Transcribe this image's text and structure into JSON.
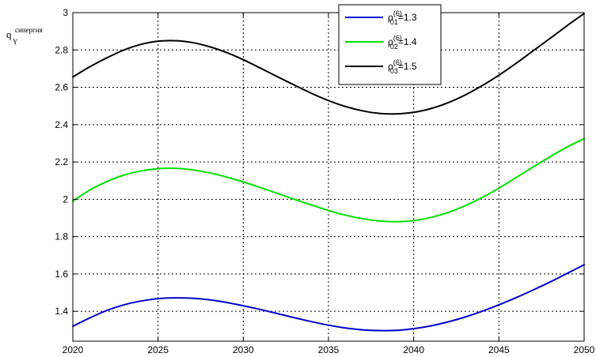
{
  "chart_data": {
    "type": "line",
    "ylabel": {
      "base": "q",
      "superscript": "синергия",
      "subscript": "Y"
    },
    "xlim": [
      2020,
      2050
    ],
    "ylim": [
      1.24,
      3.0
    ],
    "grid": true,
    "xticks": [
      2020,
      2025,
      2030,
      2035,
      2040,
      2045,
      2050
    ],
    "xtick_labels": [
      "2020",
      "2025",
      "2030",
      "2035",
      "2040",
      "2045",
      "2050"
    ],
    "yticks": [
      1.4,
      1.6,
      1.8,
      2.0,
      2.2,
      2.4,
      2.6,
      2.8,
      3.0
    ],
    "ytick_labels": [
      "1.4",
      "1.6",
      "1.8",
      "2",
      "2.2",
      "2.4",
      "2.6",
      "2.8",
      "3"
    ],
    "legend_position": "top-center",
    "x": [
      2020,
      2021,
      2022,
      2023,
      2024,
      2025,
      2026,
      2027,
      2028,
      2029,
      2030,
      2031,
      2032,
      2033,
      2034,
      2035,
      2036,
      2037,
      2038,
      2039,
      2040,
      2041,
      2042,
      2043,
      2044,
      2045,
      2046,
      2047,
      2048,
      2049,
      2050
    ],
    "series": [
      {
        "legend": {
          "base": "ρ",
          "sup": "(6)",
          "sub": "01",
          "value": "=1.3"
        },
        "color": "#0000cc",
        "values": [
          1.32,
          1.365,
          1.405,
          1.435,
          1.455,
          1.468,
          1.472,
          1.47,
          1.462,
          1.448,
          1.43,
          1.41,
          1.388,
          1.366,
          1.345,
          1.326,
          1.311,
          1.301,
          1.297,
          1.298,
          1.307,
          1.322,
          1.343,
          1.369,
          1.4,
          1.435,
          1.473,
          1.514,
          1.557,
          1.603,
          1.65
        ]
      },
      {
        "legend": {
          "base": "ρ",
          "sup": "(6)",
          "sub": "02",
          "value": "=1.4"
        },
        "color": "#00e000",
        "values": [
          1.99,
          2.05,
          2.095,
          2.13,
          2.152,
          2.164,
          2.166,
          2.158,
          2.142,
          2.12,
          2.093,
          2.063,
          2.032,
          2.0,
          1.97,
          1.94,
          1.915,
          1.896,
          1.884,
          1.88,
          1.886,
          1.903,
          1.929,
          1.965,
          2.009,
          2.06,
          2.116,
          2.173,
          2.228,
          2.28,
          2.325
        ]
      },
      {
        "legend": {
          "base": "ρ",
          "sup": "(6)",
          "sub": "03",
          "value": "=1.5"
        },
        "color": "#000000",
        "values": [
          2.655,
          2.71,
          2.758,
          2.8,
          2.83,
          2.847,
          2.85,
          2.84,
          2.818,
          2.787,
          2.748,
          2.703,
          2.657,
          2.612,
          2.568,
          2.529,
          2.497,
          2.474,
          2.46,
          2.458,
          2.466,
          2.486,
          2.517,
          2.558,
          2.608,
          2.665,
          2.728,
          2.795,
          2.862,
          2.93,
          2.995
        ]
      }
    ]
  }
}
